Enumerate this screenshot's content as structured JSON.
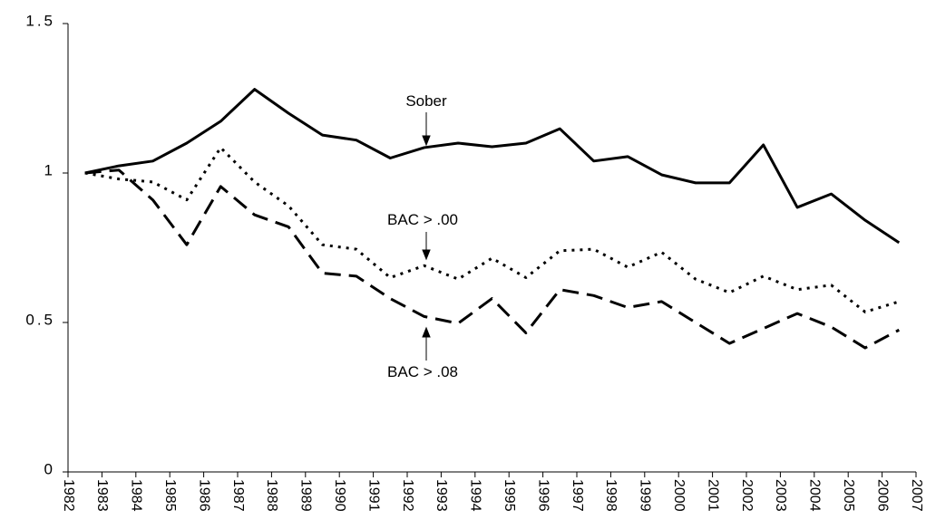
{
  "chart_data": {
    "type": "line",
    "annotations": [
      "Sober",
      "BAC > .00",
      "BAC > .08"
    ],
    "x": [
      1982.5,
      1983.5,
      1984.5,
      1985.5,
      1986.5,
      1987.5,
      1988.5,
      1989.5,
      1990.5,
      1991.5,
      1992.5,
      1993.5,
      1994.5,
      1995.5,
      1996.5,
      1997.5,
      1998.5,
      1999.5,
      2000.5,
      2001.5,
      2002.5,
      2003.5,
      2004.5,
      2005.5,
      2006.5
    ],
    "series": [
      {
        "name": "Sober",
        "color": "#000000",
        "dash": "solid",
        "values": [
          1.0,
          1.024,
          1.04,
          1.1,
          1.173,
          1.28,
          1.2,
          1.127,
          1.11,
          1.05,
          1.085,
          1.1,
          1.088,
          1.1,
          1.148,
          1.04,
          1.055,
          0.994,
          0.967,
          0.967,
          1.094,
          0.885,
          0.93,
          0.842,
          0.767
        ]
      },
      {
        "name": "BAC > .00",
        "color": "#000000",
        "dash": "dotted",
        "values": [
          1.0,
          0.98,
          0.97,
          0.91,
          1.085,
          0.97,
          0.89,
          0.76,
          0.745,
          0.65,
          0.69,
          0.645,
          0.715,
          0.65,
          0.74,
          0.745,
          0.685,
          0.735,
          0.645,
          0.6,
          0.655,
          0.61,
          0.625,
          0.535,
          0.57
        ]
      },
      {
        "name": "BAC > .08",
        "color": "#000000",
        "dash": "dashed",
        "values": [
          1.0,
          1.01,
          0.91,
          0.76,
          0.955,
          0.86,
          0.82,
          0.665,
          0.655,
          0.58,
          0.52,
          0.497,
          0.58,
          0.465,
          0.61,
          0.59,
          0.55,
          0.57,
          0.5,
          0.43,
          0.48,
          0.53,
          0.485,
          0.415,
          0.475
        ]
      }
    ],
    "xlim": [
      1982,
      2007
    ],
    "xticks": [
      1982,
      1983,
      1984,
      1985,
      1986,
      1987,
      1988,
      1989,
      1990,
      1991,
      1992,
      1993,
      1994,
      1995,
      1996,
      1997,
      1998,
      1999,
      2000,
      2001,
      2002,
      2003,
      2004,
      2005,
      2006,
      2007
    ],
    "ylim": [
      0,
      1.5
    ],
    "yticks": [
      0,
      0.5,
      1,
      1.5
    ],
    "grid": false
  }
}
